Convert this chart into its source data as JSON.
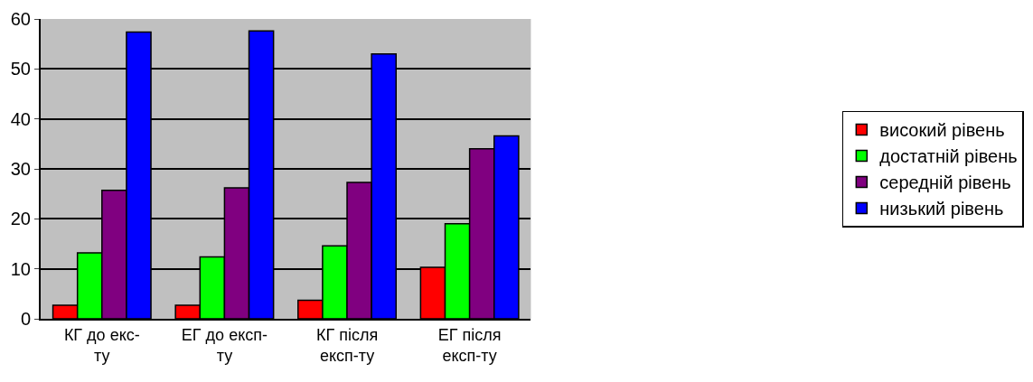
{
  "chart_data": {
    "type": "bar",
    "categories": [
      "КГ до екс-\nту",
      "ЕГ до експ-\nту",
      "КГ після\nексп-ту",
      "ЕГ після\nексп-ту"
    ],
    "series": [
      {
        "name": "високий рівень",
        "color": "#ff0000",
        "values": [
          2.7,
          2.7,
          3.7,
          10.3
        ]
      },
      {
        "name": "достатній рівень",
        "color": "#00ff00",
        "values": [
          13.2,
          12.4,
          14.6,
          19.0
        ]
      },
      {
        "name": "середній рівень",
        "color": "#800080",
        "values": [
          25.7,
          26.2,
          27.3,
          34.0
        ]
      },
      {
        "name": "низький рівень",
        "color": "#0000ff",
        "values": [
          57.4,
          57.6,
          53.0,
          36.6
        ]
      }
    ],
    "ylim": [
      0,
      60
    ],
    "yticks": [
      0,
      10,
      20,
      30,
      40,
      50,
      60
    ],
    "grid": "y",
    "legend": "right"
  }
}
